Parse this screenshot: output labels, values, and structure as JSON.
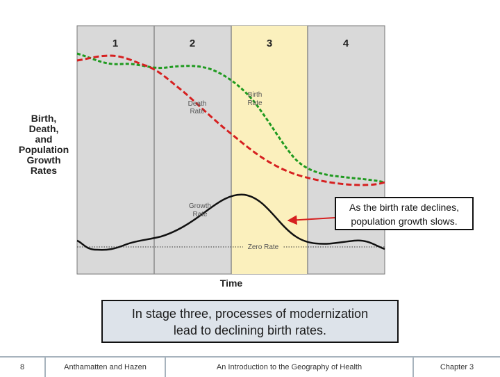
{
  "diagram": {
    "stage_labels": [
      "1",
      "2",
      "3",
      "4"
    ],
    "y_axis_title": [
      "Birth,",
      "Death,",
      "and",
      "Population",
      "Growth",
      "Rates"
    ],
    "x_axis_title": "Time",
    "curve_labels": {
      "death_rate": [
        "Death",
        "Rate"
      ],
      "birth_rate": [
        "Birth",
        "Rate"
      ],
      "growth_rate": [
        "Growth",
        "Rate"
      ],
      "zero_rate": "Zero Rate"
    },
    "colors": {
      "panel": "#d9d9d9",
      "highlight_stage": "#fbf0bd",
      "birth_rate": "#1f9a1f",
      "death_rate": "#d62020",
      "growth_rate": "#111111",
      "callout_arrow": "#d62020"
    }
  },
  "callout": {
    "line1": "As the birth rate declines,",
    "line2": "population growth slows."
  },
  "caption": {
    "line1": "In stage three, processes of modernization",
    "line2": "lead to declining birth rates."
  },
  "footer": {
    "page_number": "8",
    "authors": "Anthamatten and Hazen",
    "book_title": "An Introduction to the Geography of Health",
    "chapter": "Chapter 3"
  }
}
